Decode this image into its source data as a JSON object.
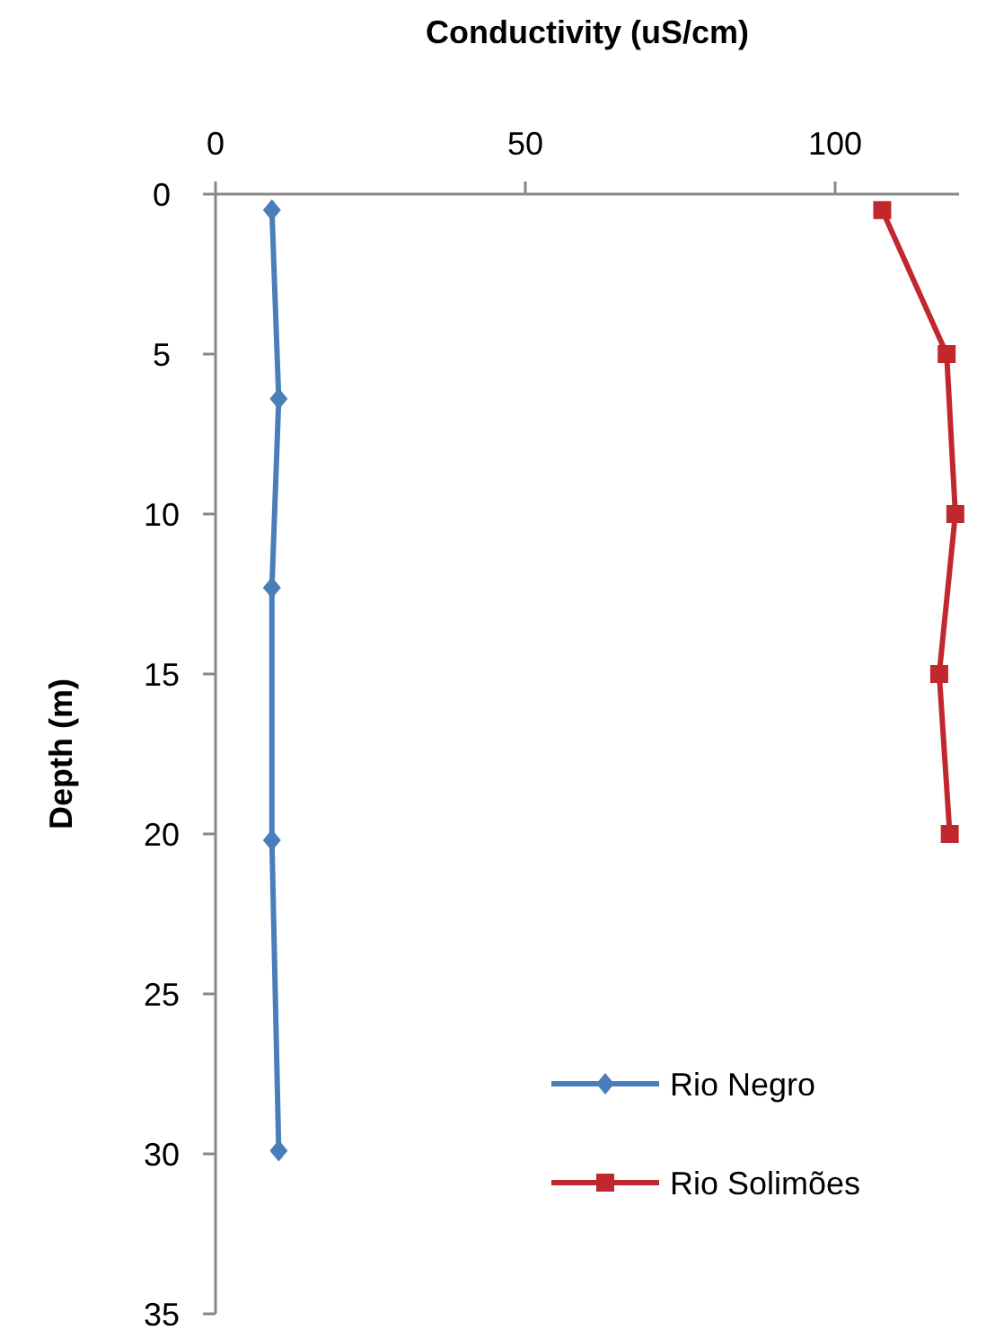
{
  "chart_data": {
    "type": "line",
    "xlabel": "Conductivity  (uS/cm)",
    "ylabel": "Depth (m)",
    "xlim": [
      0,
      120
    ],
    "xticks": [
      0,
      50,
      100
    ],
    "ylim": [
      35,
      0
    ],
    "yticks": [
      0,
      5,
      10,
      15,
      20,
      25,
      30,
      35
    ],
    "legend": "bottom right",
    "grid": false,
    "series": [
      {
        "name": "Rio Negro",
        "color": "#4a7ebb",
        "marker": "diamond",
        "x": [
          9.1,
          10.2,
          9.1,
          9.1,
          10.2
        ],
        "values": [
          0.5,
          6.4,
          12.3,
          20.2,
          29.9
        ]
      },
      {
        "name": "Rio Solimões",
        "color": "#c0282d",
        "marker": "square",
        "x": [
          107.6,
          118,
          119.4,
          116.8,
          118.5
        ],
        "values": [
          0.5,
          5,
          10,
          15,
          20
        ]
      }
    ]
  }
}
